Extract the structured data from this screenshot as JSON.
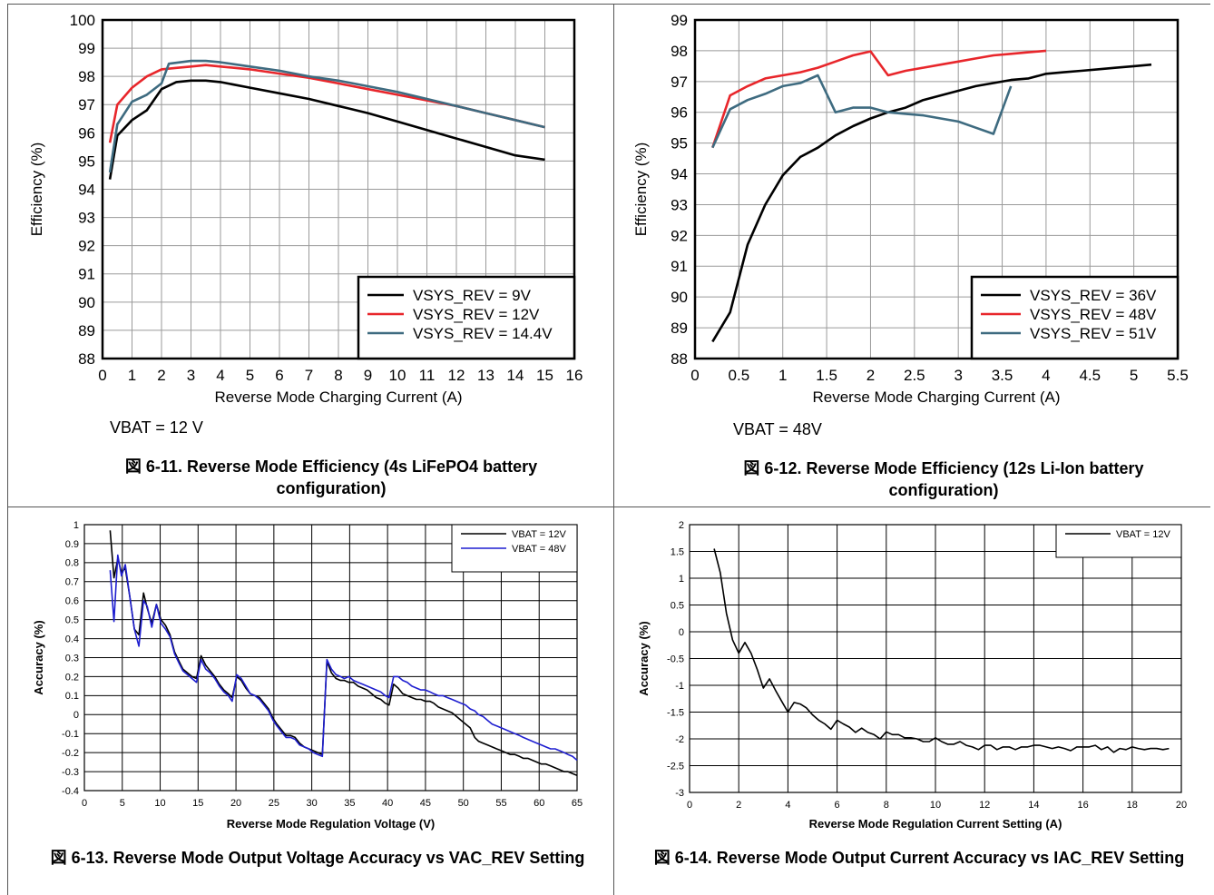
{
  "figures": [
    {
      "caption": "図 6-11. Reverse Mode Efficiency (4s LiFePO4 battery configuration)",
      "note": "VBAT = 12 V"
    },
    {
      "caption": "図 6-12. Reverse Mode Efficiency (12s Li-Ion battery configuration)",
      "note": "VBAT = 48V"
    },
    {
      "caption": "図 6-13. Reverse Mode Output Voltage Accuracy vs VAC_REV Setting",
      "note": ""
    },
    {
      "caption": "図 6-14. Reverse Mode Output Current Accuracy vs IAC_REV Setting",
      "note": ""
    }
  ],
  "chart_data": [
    {
      "type": "line",
      "xlabel": "Reverse Mode Charging Current (A)",
      "ylabel": "Efficiency (%)",
      "xlim": [
        0,
        16
      ],
      "ylim": [
        88,
        100
      ],
      "xticks": [
        0,
        1,
        2,
        3,
        4,
        5,
        6,
        7,
        8,
        9,
        10,
        11,
        12,
        13,
        14,
        15,
        16
      ],
      "yticks": [
        88,
        89,
        90,
        91,
        92,
        93,
        94,
        95,
        96,
        97,
        98,
        99,
        100
      ],
      "grid": true,
      "legend_position": "bottom-right",
      "series": [
        {
          "name": "VSYS_REV = 9V",
          "color": "#000000",
          "x": [
            0.25,
            0.5,
            1,
            1.5,
            2,
            2.5,
            3,
            3.5,
            4,
            5,
            6,
            7,
            8,
            9,
            10,
            11,
            12,
            13,
            14,
            15
          ],
          "y": [
            94.35,
            95.9,
            96.45,
            96.8,
            97.55,
            97.8,
            97.85,
            97.85,
            97.8,
            97.6,
            97.4,
            97.2,
            96.95,
            96.7,
            96.4,
            96.1,
            95.8,
            95.5,
            95.2,
            95.05
          ]
        },
        {
          "name": "VSYS_REV = 12V",
          "color": "#e8262b",
          "x": [
            0.25,
            0.5,
            1,
            1.5,
            2,
            2.5,
            3,
            3.5,
            4,
            5,
            6,
            7,
            8,
            9,
            10,
            11,
            12,
            13,
            14,
            15
          ],
          "y": [
            95.65,
            97.0,
            97.6,
            98.0,
            98.25,
            98.3,
            98.35,
            98.4,
            98.35,
            98.25,
            98.1,
            97.95,
            97.75,
            97.55,
            97.35,
            97.15,
            96.95,
            96.7,
            96.45,
            96.2
          ]
        },
        {
          "name": "VSYS_REV = 14.4V",
          "color": "#3e6b80",
          "x": [
            0.25,
            0.5,
            1,
            1.5,
            2,
            2.25,
            3,
            3.5,
            4,
            5,
            6,
            7,
            8,
            9,
            10,
            11,
            12,
            13,
            14,
            15
          ],
          "y": [
            94.6,
            96.3,
            97.1,
            97.35,
            97.75,
            98.45,
            98.55,
            98.55,
            98.5,
            98.35,
            98.2,
            98.0,
            97.85,
            97.65,
            97.45,
            97.2,
            96.95,
            96.7,
            96.45,
            96.2
          ]
        }
      ]
    },
    {
      "type": "line",
      "xlabel": "Reverse Mode Charging Current (A)",
      "ylabel": "Efficiency (%)",
      "xlim": [
        0,
        5.5
      ],
      "ylim": [
        88,
        99
      ],
      "xticks": [
        0,
        0.5,
        1,
        1.5,
        2,
        2.5,
        3,
        3.5,
        4,
        4.5,
        5,
        5.5
      ],
      "yticks": [
        88,
        89,
        90,
        91,
        92,
        93,
        94,
        95,
        96,
        97,
        98,
        99
      ],
      "grid": true,
      "legend_position": "bottom-right",
      "series": [
        {
          "name": "VSYS_REV = 36V",
          "color": "#000000",
          "x": [
            0.2,
            0.4,
            0.6,
            0.8,
            1.0,
            1.2,
            1.4,
            1.6,
            1.8,
            2.0,
            2.2,
            2.4,
            2.6,
            2.8,
            3.0,
            3.2,
            3.4,
            3.6,
            3.8,
            4.0,
            4.2,
            4.4,
            4.6,
            4.8,
            5.0,
            5.2
          ],
          "y": [
            88.55,
            89.5,
            91.7,
            93.0,
            93.95,
            94.55,
            94.85,
            95.25,
            95.55,
            95.8,
            96.0,
            96.15,
            96.4,
            96.55,
            96.7,
            96.85,
            96.95,
            97.05,
            97.1,
            97.25,
            97.3,
            97.35,
            97.4,
            97.45,
            97.5,
            97.55
          ]
        },
        {
          "name": "VSYS_REV = 48V",
          "color": "#e8262b",
          "x": [
            0.2,
            0.4,
            0.6,
            0.8,
            1.0,
            1.2,
            1.4,
            1.6,
            1.8,
            2.0,
            2.2,
            2.4,
            2.6,
            2.8,
            3.0,
            3.2,
            3.4,
            3.6,
            3.8,
            4.0
          ],
          "y": [
            94.85,
            96.55,
            96.85,
            97.1,
            97.2,
            97.3,
            97.45,
            97.65,
            97.85,
            97.98,
            97.2,
            97.35,
            97.45,
            97.55,
            97.65,
            97.75,
            97.85,
            97.9,
            97.95,
            98.0
          ]
        },
        {
          "name": "VSYS_REV = 51V",
          "color": "#3e6b80",
          "x": [
            0.2,
            0.4,
            0.6,
            0.8,
            1.0,
            1.2,
            1.4,
            1.6,
            1.8,
            2.0,
            2.2,
            2.4,
            2.6,
            2.8,
            3.0,
            3.2,
            3.4,
            3.6
          ],
          "y": [
            94.85,
            96.1,
            96.4,
            96.6,
            96.85,
            96.95,
            97.2,
            96.0,
            96.15,
            96.15,
            96.0,
            95.95,
            95.9,
            95.8,
            95.7,
            95.5,
            95.3,
            96.85
          ]
        }
      ]
    },
    {
      "type": "line",
      "xlabel": "Reverse Mode Regulation Voltage (V)",
      "ylabel": "Accuracy (%)",
      "xlim": [
        0,
        65
      ],
      "ylim": [
        -0.4,
        1
      ],
      "xticks": [
        0,
        5,
        10,
        15,
        20,
        25,
        30,
        35,
        40,
        45,
        50,
        55,
        60,
        65
      ],
      "yticks": [
        "-0.4",
        "-0.3",
        "-0.2",
        "-0.1",
        "0",
        "0.1",
        "0.2",
        "0.3",
        "0.4",
        "0.5",
        "0.6",
        "0.7",
        "0.8",
        "0.9",
        "1"
      ],
      "grid": true,
      "legend_position": "top-right",
      "series": [
        {
          "name": "VBAT = 12V",
          "color": "#000000",
          "x": [
            3.4,
            3.9,
            4.4,
            4.9,
            5.4,
            6.0,
            6.6,
            7.2,
            7.8,
            8.3,
            8.9,
            9.5,
            10.1,
            10.7,
            11.3,
            11.9,
            12.5,
            13.0,
            13.6,
            14.2,
            14.8,
            15.4,
            16.0,
            16.6,
            17.2,
            17.8,
            18.4,
            19.0,
            19.5,
            20.1,
            20.7,
            21.3,
            21.9,
            22.5,
            23.1,
            23.7,
            24.3,
            24.9,
            25.4,
            26.0,
            26.6,
            27.2,
            27.8,
            28.4,
            29.0,
            29.6,
            30.2,
            30.8,
            31.4,
            32.0,
            32.6,
            33.2,
            33.8,
            34.3,
            34.9,
            35.5,
            36.1,
            36.7,
            37.3,
            37.9,
            38.5,
            39.1,
            39.7,
            40.2,
            40.8,
            41.4,
            42.0,
            42.6,
            43.2,
            43.8,
            44.4,
            45.0,
            45.6,
            46.1,
            46.7,
            47.3,
            47.9,
            48.5,
            49.1,
            49.7,
            50.3,
            50.9,
            51.5,
            52.0,
            52.6,
            53.2,
            53.8,
            54.4,
            55.0,
            55.6,
            56.2,
            56.8,
            57.4,
            57.9,
            58.5,
            59.1,
            59.7,
            60.3,
            60.9,
            61.5,
            62.1,
            62.7,
            63.3,
            63.8,
            64.4,
            65.0
          ],
          "y": [
            0.97,
            0.72,
            0.82,
            0.75,
            0.77,
            0.62,
            0.45,
            0.42,
            0.64,
            0.56,
            0.48,
            0.58,
            0.5,
            0.47,
            0.42,
            0.33,
            0.28,
            0.24,
            0.22,
            0.2,
            0.19,
            0.31,
            0.26,
            0.23,
            0.2,
            0.16,
            0.13,
            0.11,
            0.09,
            0.2,
            0.18,
            0.14,
            0.11,
            0.1,
            0.09,
            0.06,
            0.03,
            -0.02,
            -0.05,
            -0.08,
            -0.11,
            -0.11,
            -0.12,
            -0.15,
            -0.17,
            -0.18,
            -0.19,
            -0.2,
            -0.21,
            0.28,
            0.22,
            0.19,
            0.18,
            0.18,
            0.17,
            0.17,
            0.15,
            0.14,
            0.13,
            0.11,
            0.09,
            0.08,
            0.06,
            0.05,
            0.16,
            0.14,
            0.11,
            0.1,
            0.09,
            0.08,
            0.08,
            0.07,
            0.07,
            0.06,
            0.04,
            0.03,
            0.02,
            0.01,
            -0.01,
            -0.03,
            -0.05,
            -0.07,
            -0.12,
            -0.14,
            -0.15,
            -0.16,
            -0.17,
            -0.18,
            -0.19,
            -0.2,
            -0.21,
            -0.21,
            -0.22,
            -0.23,
            -0.23,
            -0.24,
            -0.25,
            -0.26,
            -0.26,
            -0.27,
            -0.28,
            -0.29,
            -0.3,
            -0.3,
            -0.31,
            -0.32
          ]
        },
        {
          "name": "VBAT = 48V",
          "color": "#1f1fd0",
          "x": [
            3.4,
            3.9,
            4.4,
            4.9,
            5.4,
            6.0,
            6.6,
            7.2,
            7.8,
            8.3,
            8.9,
            9.5,
            10.1,
            10.7,
            11.3,
            11.9,
            12.5,
            13.0,
            13.6,
            14.2,
            14.8,
            15.4,
            16.0,
            16.6,
            17.2,
            17.8,
            18.4,
            19.0,
            19.5,
            20.1,
            20.7,
            21.3,
            21.9,
            22.5,
            23.1,
            23.7,
            24.3,
            24.9,
            25.4,
            26.0,
            26.6,
            27.2,
            27.8,
            28.4,
            29.0,
            29.6,
            30.2,
            30.8,
            31.4,
            32.0,
            32.6,
            33.2,
            33.8,
            34.3,
            34.9,
            35.5,
            36.1,
            36.7,
            37.3,
            37.9,
            38.5,
            39.1,
            39.7,
            40.2,
            40.8,
            41.4,
            42.0,
            42.6,
            43.2,
            43.8,
            44.4,
            45.0,
            45.6,
            46.1,
            46.7,
            47.3,
            47.9,
            48.5,
            49.1,
            49.7,
            50.3,
            50.9,
            51.5,
            52.0,
            52.6,
            53.2,
            53.8,
            54.4,
            55.0,
            55.6,
            56.2,
            56.8,
            57.4,
            57.9,
            58.5,
            59.1,
            59.7,
            60.3,
            60.9,
            61.5,
            62.1,
            62.7,
            63.3,
            63.8,
            64.4,
            65.0
          ],
          "y": [
            0.76,
            0.49,
            0.84,
            0.73,
            0.79,
            0.62,
            0.45,
            0.36,
            0.6,
            0.57,
            0.46,
            0.58,
            0.48,
            0.45,
            0.41,
            0.32,
            0.27,
            0.23,
            0.21,
            0.19,
            0.17,
            0.29,
            0.24,
            0.22,
            0.19,
            0.15,
            0.12,
            0.1,
            0.07,
            0.21,
            0.19,
            0.15,
            0.11,
            0.1,
            0.08,
            0.05,
            0.02,
            -0.03,
            -0.06,
            -0.09,
            -0.12,
            -0.12,
            -0.13,
            -0.16,
            -0.17,
            -0.18,
            -0.2,
            -0.21,
            -0.22,
            0.29,
            0.24,
            0.21,
            0.2,
            0.19,
            0.2,
            0.18,
            0.17,
            0.16,
            0.15,
            0.14,
            0.13,
            0.12,
            0.1,
            0.09,
            0.2,
            0.2,
            0.18,
            0.17,
            0.15,
            0.14,
            0.13,
            0.13,
            0.12,
            0.11,
            0.1,
            0.1,
            0.09,
            0.08,
            0.07,
            0.06,
            0.05,
            0.03,
            0.02,
            0.0,
            -0.01,
            -0.03,
            -0.05,
            -0.06,
            -0.07,
            -0.08,
            -0.09,
            -0.1,
            -0.11,
            -0.12,
            -0.13,
            -0.14,
            -0.15,
            -0.16,
            -0.17,
            -0.18,
            -0.18,
            -0.19,
            -0.2,
            -0.21,
            -0.22,
            -0.24
          ]
        }
      ]
    },
    {
      "type": "line",
      "xlabel": "Reverse Mode Regulation Current Setting (A)",
      "ylabel": "Accuracy (%)",
      "xlim": [
        0,
        20
      ],
      "ylim": [
        -3,
        2
      ],
      "xticks": [
        0,
        2,
        4,
        6,
        8,
        10,
        12,
        14,
        16,
        18,
        20
      ],
      "yticks": [
        "-3",
        "-2.5",
        "-2",
        "-1.5",
        "-1",
        "-0.5",
        "0",
        "0.5",
        "1",
        "1.5",
        "2"
      ],
      "grid": true,
      "legend_position": "top-right",
      "series": [
        {
          "name": "VBAT = 12V",
          "color": "#000000",
          "x": [
            1.0,
            1.25,
            1.5,
            1.75,
            2.0,
            2.25,
            2.5,
            2.75,
            3.0,
            3.25,
            3.5,
            3.75,
            4.0,
            4.25,
            4.5,
            4.75,
            5.0,
            5.25,
            5.5,
            5.75,
            6.0,
            6.25,
            6.5,
            6.75,
            7.0,
            7.25,
            7.5,
            7.75,
            8.0,
            8.25,
            8.5,
            8.75,
            9.0,
            9.25,
            9.5,
            9.75,
            10.0,
            10.25,
            10.5,
            10.75,
            11.0,
            11.25,
            11.5,
            11.75,
            12.0,
            12.25,
            12.5,
            12.75,
            13.0,
            13.25,
            13.5,
            13.75,
            14.0,
            14.25,
            14.5,
            14.75,
            15.0,
            15.25,
            15.5,
            15.75,
            16.0,
            16.25,
            16.5,
            16.75,
            17.0,
            17.25,
            17.5,
            17.75,
            18.0,
            18.25,
            18.5,
            18.75,
            19.0,
            19.25,
            19.5
          ],
          "y": [
            1.55,
            1.1,
            0.35,
            -0.15,
            -0.4,
            -0.2,
            -0.4,
            -0.7,
            -1.05,
            -0.88,
            -1.1,
            -1.3,
            -1.5,
            -1.32,
            -1.35,
            -1.42,
            -1.55,
            -1.65,
            -1.72,
            -1.82,
            -1.65,
            -1.72,
            -1.78,
            -1.88,
            -1.8,
            -1.88,
            -1.92,
            -2.0,
            -1.87,
            -1.92,
            -1.92,
            -1.98,
            -1.98,
            -2.0,
            -2.05,
            -2.05,
            -1.98,
            -2.05,
            -2.1,
            -2.1,
            -2.05,
            -2.12,
            -2.15,
            -2.2,
            -2.12,
            -2.12,
            -2.2,
            -2.15,
            -2.15,
            -2.2,
            -2.15,
            -2.15,
            -2.12,
            -2.12,
            -2.15,
            -2.18,
            -2.15,
            -2.18,
            -2.22,
            -2.15,
            -2.15,
            -2.15,
            -2.12,
            -2.2,
            -2.15,
            -2.25,
            -2.18,
            -2.2,
            -2.15,
            -2.18,
            -2.2,
            -2.18,
            -2.18,
            -2.2,
            -2.18
          ]
        }
      ]
    }
  ]
}
